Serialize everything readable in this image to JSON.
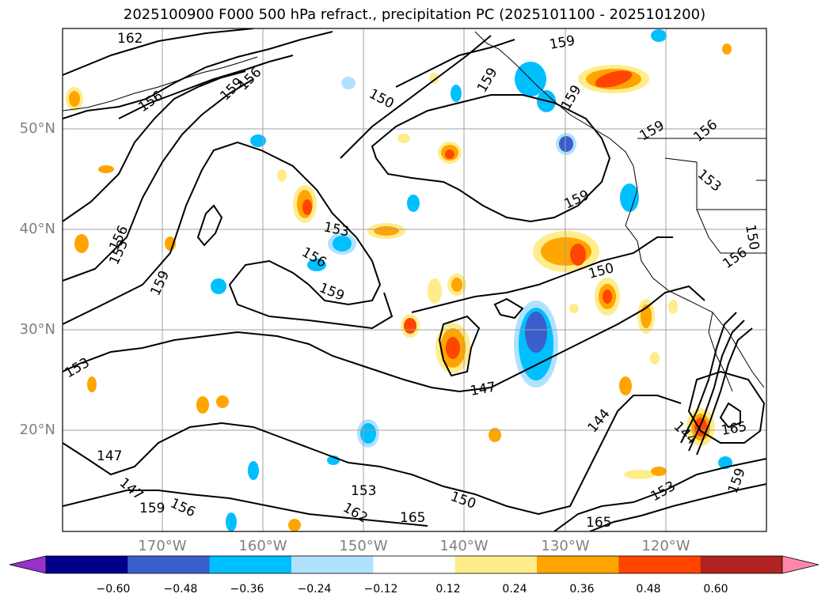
{
  "title": "2025100900 F000 500 hPa refract., precipitation PC (2025101100 - 2025101200)",
  "map": {
    "lat_labels": [
      "50°N",
      "40°N",
      "30°N",
      "20°N"
    ],
    "lon_labels": [
      "170°W",
      "160°W",
      "150°W",
      "140°W",
      "130°W",
      "120°W"
    ],
    "contour_labels": [
      {
        "text": "162"
      },
      {
        "text": "159"
      },
      {
        "text": "156"
      },
      {
        "text": "159"
      },
      {
        "text": "156"
      },
      {
        "text": "150"
      },
      {
        "text": "159"
      },
      {
        "text": "159"
      },
      {
        "text": "159"
      },
      {
        "text": "156"
      },
      {
        "text": "159"
      },
      {
        "text": "153"
      },
      {
        "text": "153"
      },
      {
        "text": "156"
      },
      {
        "text": "153"
      },
      {
        "text": "156"
      },
      {
        "text": "159"
      },
      {
        "text": "159"
      },
      {
        "text": "150"
      },
      {
        "text": "150"
      },
      {
        "text": "156"
      },
      {
        "text": "153"
      },
      {
        "text": "147"
      },
      {
        "text": "147"
      },
      {
        "text": "144"
      },
      {
        "text": "144"
      },
      {
        "text": "165"
      },
      {
        "text": "147"
      },
      {
        "text": "159"
      },
      {
        "text": "156"
      },
      {
        "text": "153"
      },
      {
        "text": "150"
      },
      {
        "text": "165"
      },
      {
        "text": "165"
      },
      {
        "text": "162"
      },
      {
        "text": "153"
      },
      {
        "text": "159"
      }
    ]
  },
  "colorbar": {
    "ticks": [
      "−0.60",
      "−0.48",
      "−0.36",
      "−0.24",
      "−0.12",
      "0.12",
      "0.24",
      "0.36",
      "0.48",
      "0.60"
    ],
    "colors": [
      "#9932cc",
      "#00008b",
      "#3a5fcd",
      "#00bfff",
      "#b0e2ff",
      "#ffffff",
      "#ffec8b",
      "#ffa500",
      "#ff4500",
      "#b22222",
      "#ff88aa"
    ]
  },
  "colors": {
    "contour": "#000000",
    "grid": "#a0a0a0",
    "axis_label": "#808080"
  }
}
